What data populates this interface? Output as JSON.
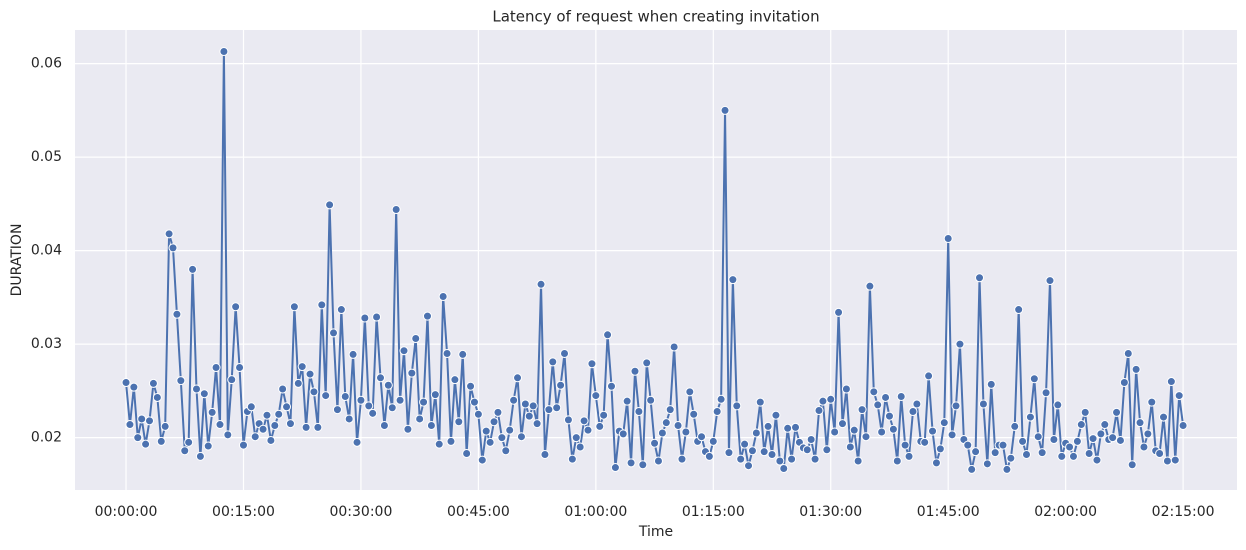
{
  "chart_data": {
    "type": "line",
    "title": "Latency of request when creating invitation",
    "x_label": "Time",
    "y_label": "DURATION",
    "color": "#4c72b0",
    "grid": true,
    "xlim": [
      -391,
      8513
    ],
    "ylim": [
      0.0144,
      0.0636
    ],
    "xticks": [
      {
        "value": 0,
        "label": "00:00:00"
      },
      {
        "value": 900,
        "label": "00:15:00"
      },
      {
        "value": 1800,
        "label": "00:30:00"
      },
      {
        "value": 2700,
        "label": "00:45:00"
      },
      {
        "value": 3600,
        "label": "01:00:00"
      },
      {
        "value": 4500,
        "label": "01:15:00"
      },
      {
        "value": 5400,
        "label": "01:30:00"
      },
      {
        "value": 6300,
        "label": "01:45:00"
      },
      {
        "value": 7200,
        "label": "02:00:00"
      },
      {
        "value": 8100,
        "label": "02:15:00"
      }
    ],
    "yticks": [
      0.02,
      0.03,
      0.04,
      0.05,
      0.06
    ],
    "x": [
      0,
      30,
      60,
      90,
      120,
      150,
      180,
      210,
      240,
      270,
      300,
      330,
      360,
      390,
      420,
      450,
      480,
      510,
      540,
      570,
      600,
      630,
      660,
      690,
      720,
      750,
      780,
      810,
      840,
      870,
      900,
      930,
      960,
      990,
      1020,
      1050,
      1080,
      1110,
      1140,
      1170,
      1200,
      1230,
      1260,
      1290,
      1320,
      1350,
      1380,
      1410,
      1440,
      1470,
      1500,
      1530,
      1560,
      1590,
      1620,
      1650,
      1680,
      1710,
      1740,
      1770,
      1800,
      1830,
      1860,
      1890,
      1920,
      1950,
      1980,
      2010,
      2040,
      2070,
      2100,
      2130,
      2160,
      2190,
      2220,
      2250,
      2280,
      2310,
      2340,
      2370,
      2400,
      2430,
      2460,
      2490,
      2520,
      2550,
      2580,
      2610,
      2640,
      2670,
      2700,
      2730,
      2760,
      2790,
      2820,
      2850,
      2880,
      2910,
      2940,
      2970,
      3000,
      3030,
      3060,
      3090,
      3120,
      3150,
      3180,
      3210,
      3240,
      3270,
      3300,
      3330,
      3360,
      3390,
      3420,
      3450,
      3480,
      3510,
      3540,
      3570,
      3600,
      3630,
      3660,
      3690,
      3720,
      3750,
      3780,
      3810,
      3840,
      3870,
      3900,
      3930,
      3960,
      3990,
      4020,
      4050,
      4080,
      4110,
      4140,
      4170,
      4200,
      4230,
      4260,
      4290,
      4320,
      4350,
      4380,
      4410,
      4440,
      4470,
      4500,
      4530,
      4560,
      4590,
      4620,
      4650,
      4680,
      4710,
      4740,
      4770,
      4800,
      4830,
      4860,
      4890,
      4920,
      4950,
      4980,
      5010,
      5040,
      5070,
      5100,
      5130,
      5160,
      5190,
      5220,
      5250,
      5280,
      5310,
      5340,
      5370,
      5400,
      5430,
      5460,
      5490,
      5520,
      5550,
      5580,
      5610,
      5640,
      5670,
      5700,
      5730,
      5760,
      5790,
      5820,
      5850,
      5880,
      5910,
      5940,
      5970,
      6000,
      6030,
      6060,
      6090,
      6120,
      6150,
      6180,
      6210,
      6240,
      6270,
      6300,
      6330,
      6360,
      6390,
      6420,
      6450,
      6480,
      6510,
      6540,
      6570,
      6600,
      6630,
      6660,
      6690,
      6720,
      6750,
      6780,
      6810,
      6840,
      6870,
      6900,
      6930,
      6960,
      6990,
      7020,
      7050,
      7080,
      7110,
      7140,
      7170,
      7200,
      7230,
      7260,
      7290,
      7320,
      7350,
      7380,
      7410,
      7440,
      7470,
      7500,
      7530,
      7560,
      7590,
      7620,
      7650,
      7680,
      7710,
      7740,
      7770,
      7800,
      7830,
      7860,
      7890,
      7920,
      7950,
      7980,
      8010,
      8040,
      8070,
      8100
    ],
    "values": [
      0.0259,
      0.0214,
      0.0254,
      0.02,
      0.022,
      0.0193,
      0.0218,
      0.0258,
      0.0243,
      0.0196,
      0.0212,
      0.0418,
      0.0403,
      0.0332,
      0.0261,
      0.0186,
      0.0195,
      0.038,
      0.0252,
      0.018,
      0.0247,
      0.0191,
      0.0227,
      0.0275,
      0.0214,
      0.0613,
      0.0203,
      0.0262,
      0.034,
      0.0275,
      0.0192,
      0.0228,
      0.0233,
      0.0201,
      0.0215,
      0.0209,
      0.0224,
      0.0197,
      0.0213,
      0.0225,
      0.0252,
      0.0233,
      0.0215,
      0.034,
      0.0258,
      0.0276,
      0.0211,
      0.0268,
      0.0249,
      0.0211,
      0.0342,
      0.0245,
      0.0449,
      0.0312,
      0.023,
      0.0337,
      0.0244,
      0.022,
      0.0289,
      0.0195,
      0.024,
      0.0328,
      0.0234,
      0.0226,
      0.0329,
      0.0264,
      0.0213,
      0.0256,
      0.0232,
      0.0444,
      0.024,
      0.0293,
      0.0209,
      0.0269,
      0.0306,
      0.022,
      0.0238,
      0.033,
      0.0213,
      0.0246,
      0.0193,
      0.0351,
      0.029,
      0.0196,
      0.0262,
      0.0217,
      0.0289,
      0.0183,
      0.0255,
      0.0238,
      0.0225,
      0.0176,
      0.0207,
      0.0195,
      0.0217,
      0.0227,
      0.02,
      0.0186,
      0.0208,
      0.024,
      0.0264,
      0.0201,
      0.0236,
      0.0223,
      0.0234,
      0.0215,
      0.0364,
      0.0182,
      0.023,
      0.0281,
      0.0232,
      0.0256,
      0.029,
      0.0219,
      0.0177,
      0.02,
      0.019,
      0.0218,
      0.0208,
      0.0279,
      0.0245,
      0.0212,
      0.0224,
      0.031,
      0.0255,
      0.0168,
      0.0207,
      0.0204,
      0.0239,
      0.0173,
      0.0271,
      0.0228,
      0.0171,
      0.028,
      0.024,
      0.0194,
      0.0175,
      0.0205,
      0.0216,
      0.023,
      0.0297,
      0.0213,
      0.0177,
      0.0206,
      0.0249,
      0.0225,
      0.0196,
      0.0201,
      0.0185,
      0.018,
      0.0196,
      0.0228,
      0.0241,
      0.055,
      0.0184,
      0.0369,
      0.0234,
      0.0177,
      0.0193,
      0.017,
      0.0186,
      0.0205,
      0.0238,
      0.0185,
      0.0212,
      0.0182,
      0.0224,
      0.0175,
      0.0167,
      0.021,
      0.0177,
      0.0211,
      0.0195,
      0.0189,
      0.0187,
      0.0198,
      0.0177,
      0.0229,
      0.0239,
      0.0187,
      0.0241,
      0.0206,
      0.0334,
      0.0215,
      0.0252,
      0.019,
      0.0208,
      0.0175,
      0.023,
      0.0201,
      0.0362,
      0.0249,
      0.0235,
      0.0206,
      0.0243,
      0.0223,
      0.0209,
      0.0175,
      0.0244,
      0.0192,
      0.018,
      0.0228,
      0.0236,
      0.0196,
      0.0195,
      0.0266,
      0.0207,
      0.0173,
      0.0188,
      0.0216,
      0.0413,
      0.0203,
      0.0234,
      0.03,
      0.0198,
      0.0192,
      0.0166,
      0.0185,
      0.0371,
      0.0236,
      0.0172,
      0.0257,
      0.0184,
      0.0192,
      0.0192,
      0.0166,
      0.0178,
      0.0212,
      0.0337,
      0.0196,
      0.0182,
      0.0222,
      0.0263,
      0.0201,
      0.0184,
      0.0248,
      0.0368,
      0.0198,
      0.0235,
      0.018,
      0.0194,
      0.019,
      0.018,
      0.0196,
      0.0214,
      0.0227,
      0.0183,
      0.0199,
      0.0176,
      0.0204,
      0.0214,
      0.0198,
      0.02,
      0.0227,
      0.0197,
      0.0259,
      0.029,
      0.0171,
      0.0273,
      0.0216,
      0.019,
      0.0204,
      0.0238,
      0.0186,
      0.0183,
      0.0222,
      0.0175,
      0.026,
      0.0176,
      0.0245,
      0.0213
    ]
  }
}
